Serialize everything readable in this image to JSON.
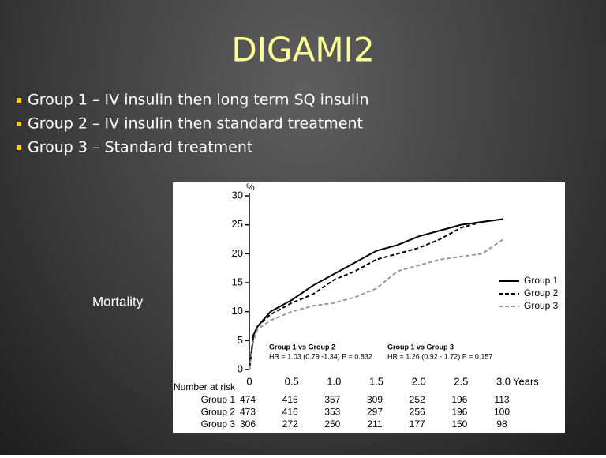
{
  "slide": {
    "title": "DIGAMI2",
    "bullets": [
      "Group 1 – IV insulin then long term SQ insulin",
      "Group 2 – IV insulin then standard treatment",
      "Group 3 – Standard treatment"
    ],
    "side_label": "Mortality"
  },
  "chart_data": {
    "type": "line",
    "x_label": "Years",
    "y_label": "%",
    "x": [
      0,
      0.05,
      0.1,
      0.25,
      0.5,
      0.75,
      1.0,
      1.25,
      1.5,
      1.75,
      2.0,
      2.25,
      2.5,
      2.75,
      3.0
    ],
    "series": [
      {
        "name": "Group 1",
        "color": "#000000",
        "dash": "solid",
        "values": [
          0,
          6,
          7.5,
          10,
          12,
          14.5,
          16.5,
          18.5,
          20.5,
          21.5,
          23,
          24,
          25,
          25.5,
          26
        ]
      },
      {
        "name": "Group 2",
        "color": "#000000",
        "dash": "dashed",
        "values": [
          0,
          6,
          7.5,
          9.5,
          11.5,
          13,
          15.5,
          17,
          19,
          20,
          21,
          22.5,
          24.5,
          25.5,
          26
        ]
      },
      {
        "name": "Group 3",
        "color": "#999999",
        "dash": "dashed",
        "values": [
          0,
          5,
          7,
          8.5,
          10,
          11,
          11.5,
          12.5,
          14,
          17,
          18,
          19,
          19.5,
          20,
          22.5
        ]
      }
    ],
    "xlim": [
      0,
      3
    ],
    "ylim": [
      0,
      30
    ],
    "xticks": [
      0,
      0.5,
      {
        "value": 1,
        "label": "1.0"
      },
      1.5,
      {
        "value": 2,
        "label": "2.0"
      },
      2.5,
      {
        "value": 3,
        "label": "3.0"
      }
    ],
    "yticks": [
      0,
      5,
      10,
      15,
      20,
      25,
      30
    ],
    "legend": "right",
    "annotations": [
      "Group 1 vs Group 2",
      "HR = 1.03 (0.79 -1.34) P = 0.832",
      "Group 1 vs Group 3",
      "HR = 1.26 (0.92 - 1.72) P = 0.157"
    ],
    "risk_table": {
      "title": "Number at risk",
      "rows": [
        {
          "label": "Group 1",
          "values": [
            474,
            415,
            357,
            309,
            252,
            196,
            113
          ]
        },
        {
          "label": "Group 2",
          "values": [
            473,
            416,
            353,
            297,
            256,
            196,
            100
          ]
        },
        {
          "label": "Group 3",
          "values": [
            306,
            272,
            250,
            211,
            177,
            150,
            98
          ]
        }
      ]
    }
  }
}
